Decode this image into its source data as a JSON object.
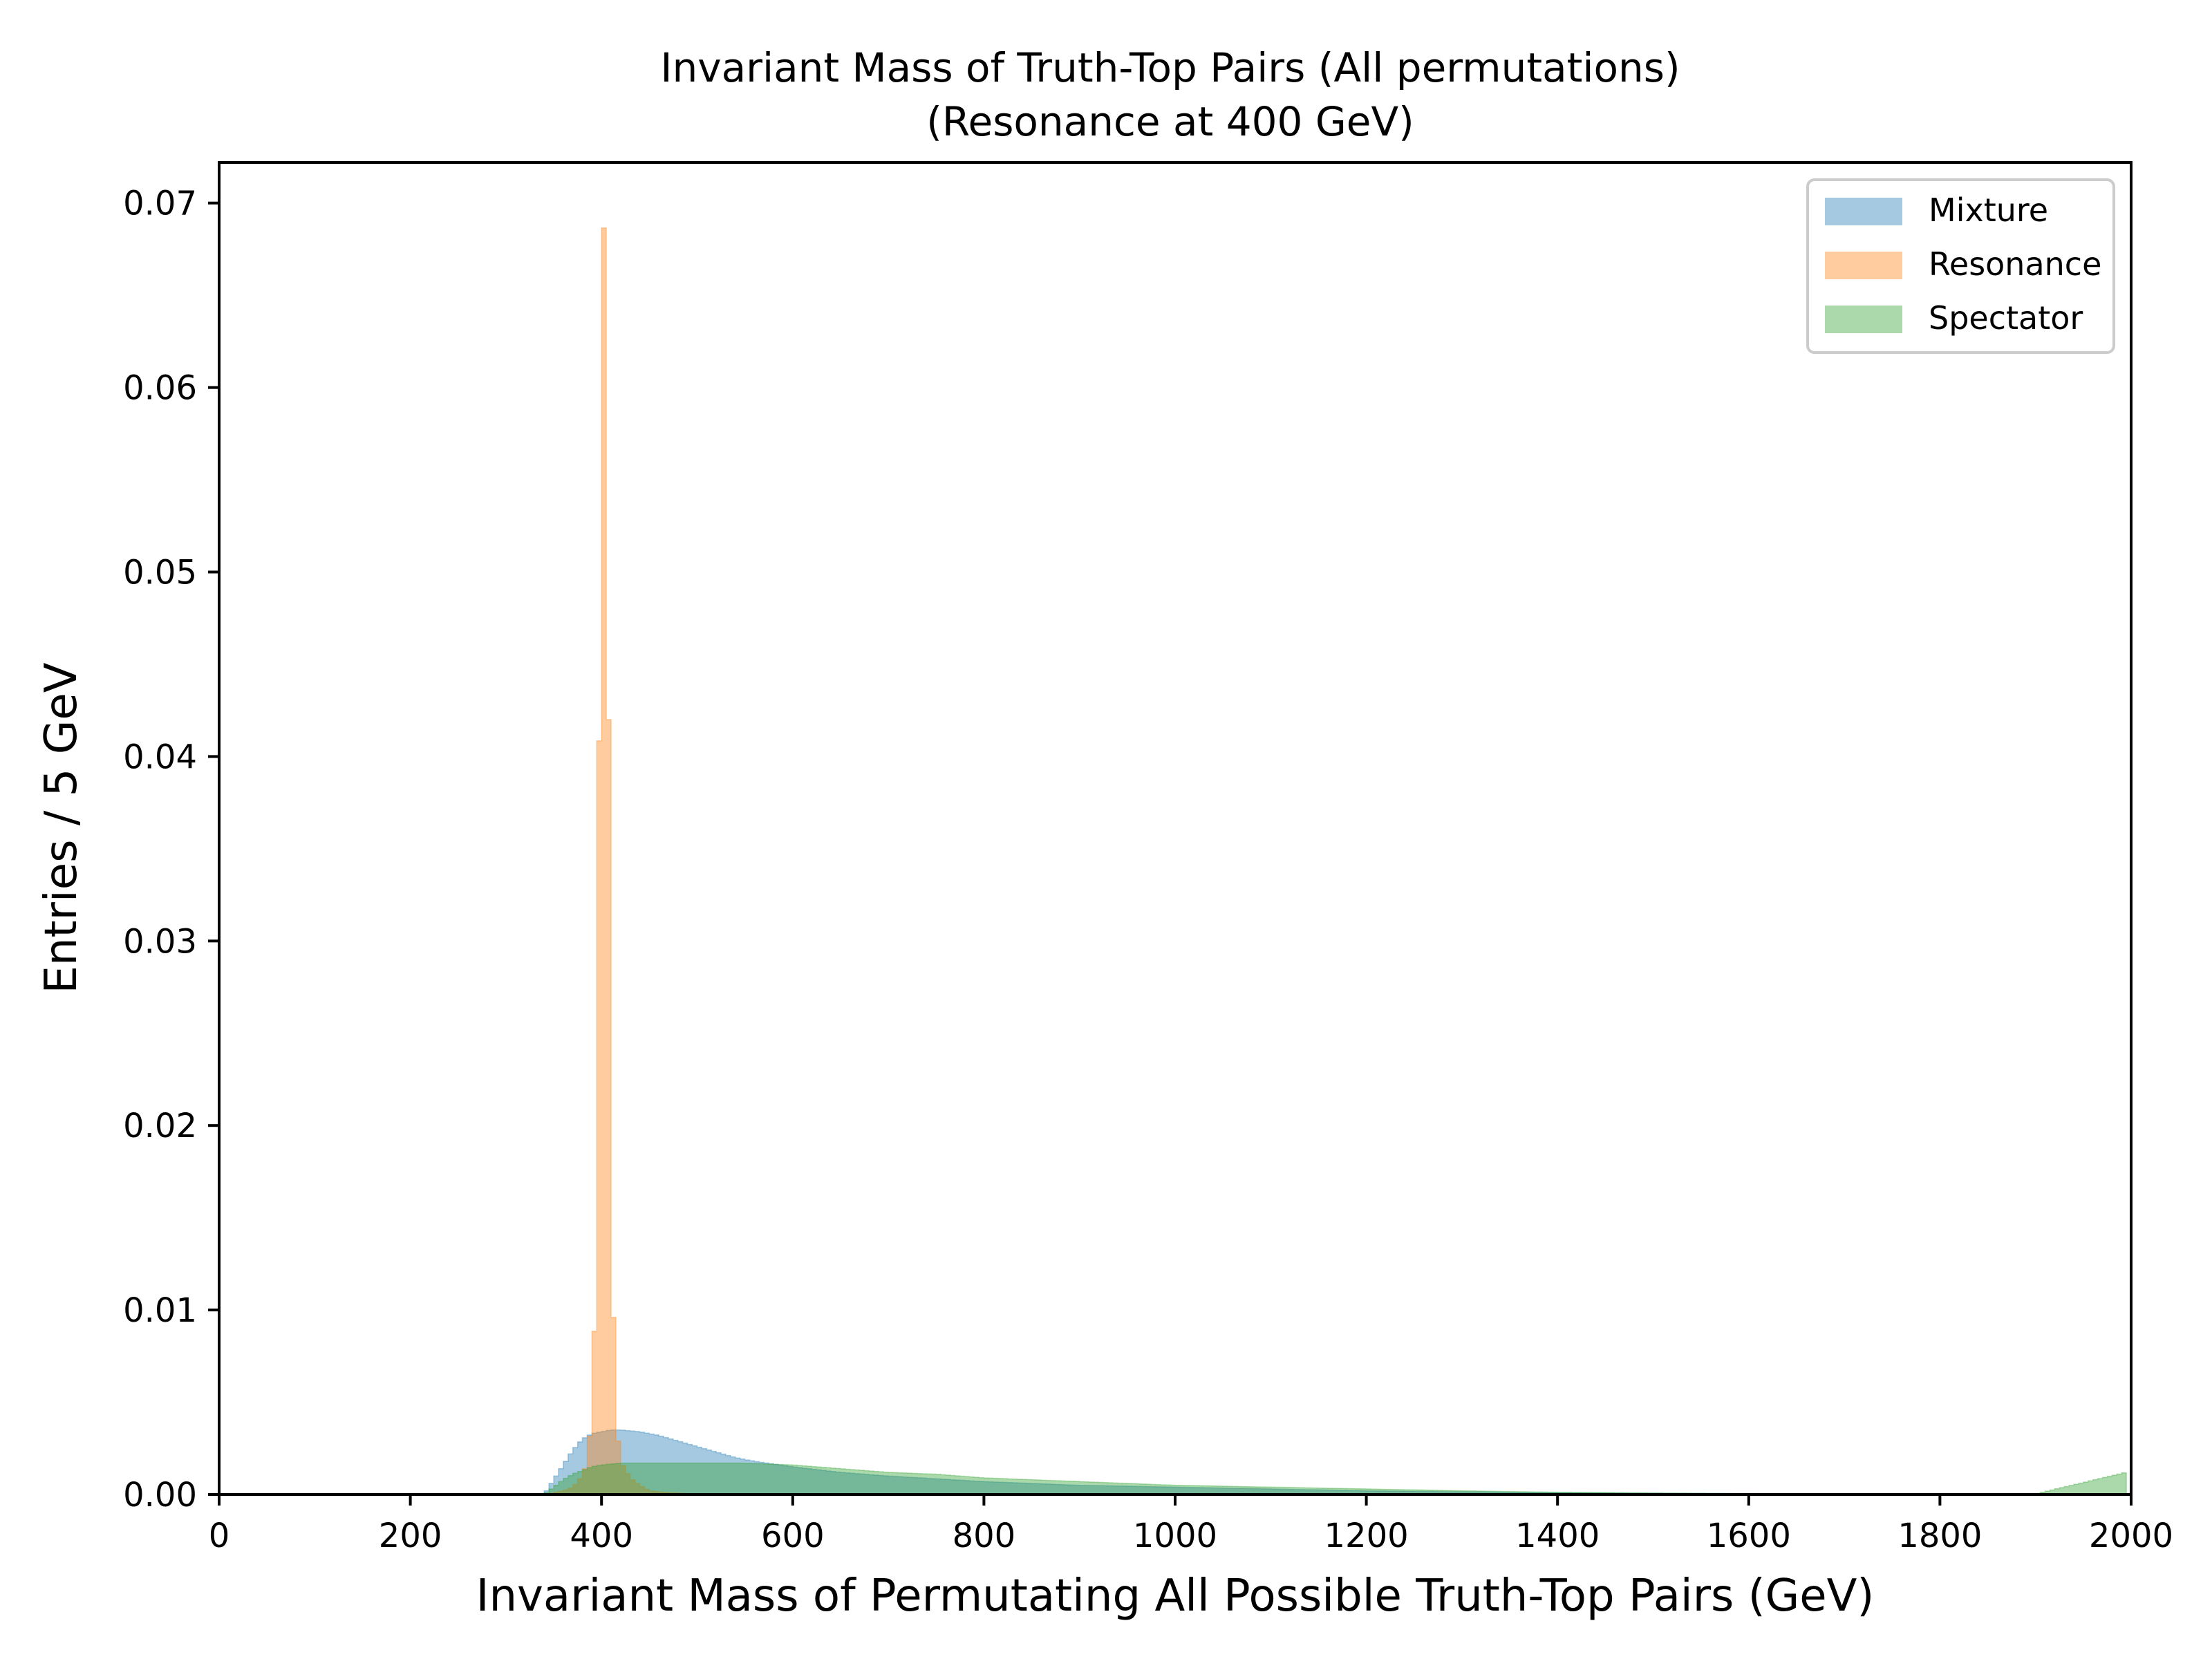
{
  "chart_data": {
    "type": "histogram",
    "title": "Invariant Mass of Truth-Top Pairs (All permutations)",
    "subtitle": "(Resonance at 400 GeV)",
    "xlabel": "Invariant Mass of Permutating All Possible Truth-Top Pairs (GeV)",
    "ylabel": "Entries / 5 GeV",
    "xlim": [
      0,
      2000
    ],
    "ylim": [
      0,
      0.0722
    ],
    "bin_width": 5,
    "x_ticks": [
      "0",
      "200",
      "400",
      "600",
      "800",
      "1000",
      "1200",
      "1400",
      "1600",
      "1800",
      "2000"
    ],
    "y_ticks": [
      "0.00",
      "0.01",
      "0.02",
      "0.03",
      "0.04",
      "0.05",
      "0.06",
      "0.07"
    ],
    "grid": false,
    "legend_position": "top-right",
    "colors": {
      "Mixture": "#1f77b4",
      "Resonance": "#ff7f0e",
      "Spectator": "#2ca02c"
    },
    "series": [
      {
        "name": "Mixture",
        "points": [
          [
            340,
            0
          ],
          [
            345,
            0.0004
          ],
          [
            350,
            0.0008
          ],
          [
            360,
            0.0016
          ],
          [
            370,
            0.0024
          ],
          [
            380,
            0.003
          ],
          [
            390,
            0.0033
          ],
          [
            400,
            0.0034
          ],
          [
            410,
            0.0035
          ],
          [
            420,
            0.0035
          ],
          [
            440,
            0.0034
          ],
          [
            460,
            0.0032
          ],
          [
            480,
            0.0029
          ],
          [
            500,
            0.0026
          ],
          [
            520,
            0.0023
          ],
          [
            540,
            0.002
          ],
          [
            560,
            0.0018
          ],
          [
            600,
            0.0015
          ],
          [
            650,
            0.0012
          ],
          [
            700,
            0.001
          ],
          [
            800,
            0.0007
          ],
          [
            900,
            0.0005
          ],
          [
            1000,
            0.0004
          ],
          [
            1100,
            0.0003
          ],
          [
            1200,
            0.0002
          ],
          [
            1300,
            0.00015
          ],
          [
            1400,
            0.0001
          ],
          [
            1500,
            7e-05
          ],
          [
            1600,
            5e-05
          ],
          [
            1700,
            3e-05
          ],
          [
            1800,
            2e-05
          ],
          [
            1900,
            1e-05
          ],
          [
            1995,
            1e-05
          ]
        ]
      },
      {
        "name": "Resonance",
        "points": [
          [
            340,
            0
          ],
          [
            360,
            0.0002
          ],
          [
            370,
            0.0004
          ],
          [
            380,
            0.001
          ],
          [
            385,
            0.0018
          ],
          [
            390,
            0.0045
          ],
          [
            395,
            0.0132
          ],
          [
            400,
            0.0685
          ],
          [
            405,
            0.0688
          ],
          [
            410,
            0.0152
          ],
          [
            415,
            0.004
          ],
          [
            420,
            0.0018
          ],
          [
            430,
            0.0009
          ],
          [
            440,
            0.0005
          ],
          [
            450,
            0.0002
          ],
          [
            470,
            0.0001
          ],
          [
            500,
            3e-05
          ],
          [
            520,
            0
          ]
        ]
      },
      {
        "name": "Spectator",
        "points": [
          [
            340,
            0
          ],
          [
            345,
            0.0002
          ],
          [
            350,
            0.0004
          ],
          [
            360,
            0.0008
          ],
          [
            370,
            0.0011
          ],
          [
            380,
            0.0013
          ],
          [
            390,
            0.0015
          ],
          [
            400,
            0.0016
          ],
          [
            420,
            0.0017
          ],
          [
            450,
            0.0017
          ],
          [
            500,
            0.0017
          ],
          [
            550,
            0.0017
          ],
          [
            600,
            0.0016
          ],
          [
            650,
            0.0014
          ],
          [
            700,
            0.0012
          ],
          [
            750,
            0.0011
          ],
          [
            800,
            0.0009
          ],
          [
            850,
            0.0008
          ],
          [
            900,
            0.0007
          ],
          [
            950,
            0.0006
          ],
          [
            1000,
            0.0005
          ],
          [
            1100,
            0.0004
          ],
          [
            1200,
            0.0003
          ],
          [
            1300,
            0.0002
          ],
          [
            1400,
            0.00012
          ],
          [
            1500,
            8e-05
          ],
          [
            1600,
            5e-05
          ],
          [
            1700,
            4e-05
          ],
          [
            1800,
            3e-05
          ],
          [
            1900,
            3e-05
          ],
          [
            1995,
            0.0012
          ]
        ]
      }
    ]
  }
}
